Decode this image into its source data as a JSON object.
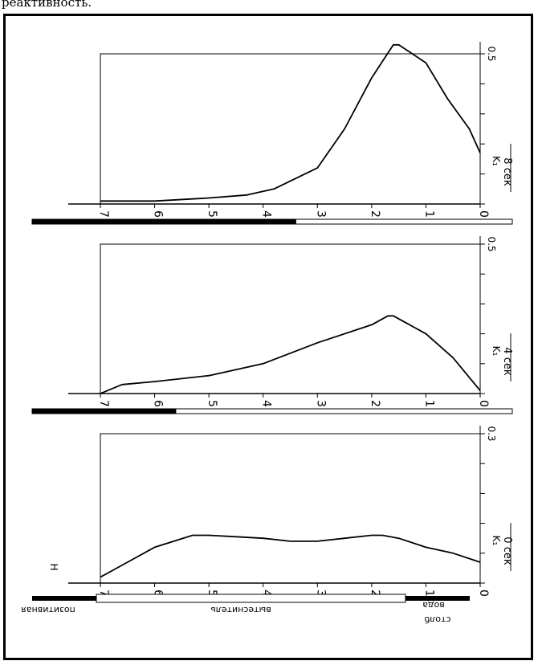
{
  "caption": "реактивность.",
  "bottom_labels": {
    "left": "позитивная",
    "middle": "вытеснитель",
    "right_top": "вода",
    "right_bottom": "столб"
  },
  "colors": {
    "ink": "#000000",
    "paper": "#ffffff"
  },
  "chart_data": [
    {
      "type": "line",
      "time_label": "8 сек",
      "ylabel": "K₁",
      "xticks": [
        "7",
        "6",
        "5",
        "4",
        "3",
        "2",
        "1",
        "0"
      ],
      "yticks": [
        "0.5"
      ],
      "xlim": [
        7,
        0
      ],
      "ylim": [
        0,
        0.5
      ],
      "series": [
        {
          "x": [
            7,
            6,
            5,
            4.3,
            3.8,
            3,
            2.5,
            2,
            1.6,
            1.5,
            1,
            0.6,
            0.2,
            0
          ],
          "values": [
            0.01,
            0.01,
            0.02,
            0.03,
            0.05,
            0.12,
            0.25,
            0.42,
            0.53,
            0.53,
            0.47,
            0.35,
            0.25,
            0.17
          ]
        }
      ],
      "solid_bar_fraction": 0.55
    },
    {
      "type": "line",
      "time_label": "4 сек",
      "ylabel": "K₁",
      "xticks": [
        "7",
        "6",
        "5",
        "4",
        "3",
        "2",
        "1",
        "0"
      ],
      "yticks": [
        "0.5"
      ],
      "xlim": [
        7,
        0
      ],
      "ylim": [
        0,
        0.5
      ],
      "series": [
        {
          "x": [
            7,
            6.6,
            6,
            5,
            4,
            3,
            2,
            1.7,
            1.6,
            1,
            0.5,
            0
          ],
          "values": [
            0,
            0.03,
            0.04,
            0.06,
            0.1,
            0.17,
            0.23,
            0.26,
            0.26,
            0.2,
            0.12,
            0.01
          ]
        }
      ],
      "solid_bar_fraction": 0.3
    },
    {
      "type": "line",
      "time_label": "0 сек",
      "ylabel": "K₁",
      "xticks": [
        "7",
        "6",
        "5",
        "4",
        "3",
        "2",
        "1",
        "0"
      ],
      "yticks": [
        "0.3"
      ],
      "corner_label": "H",
      "xlim": [
        7,
        0
      ],
      "ylim": [
        0,
        0.5
      ],
      "series": [
        {
          "x": [
            7,
            6.5,
            6,
            5.3,
            5,
            4.5,
            4,
            3.5,
            3,
            2.5,
            2,
            1.8,
            1.5,
            1,
            0.5,
            0
          ],
          "values": [
            0.02,
            0.07,
            0.12,
            0.16,
            0.16,
            0.155,
            0.15,
            0.14,
            0.14,
            0.15,
            0.16,
            0.16,
            0.15,
            0.12,
            0.1,
            0.07
          ]
        }
      ],
      "solid_bar_fraction": 0.12
    }
  ]
}
